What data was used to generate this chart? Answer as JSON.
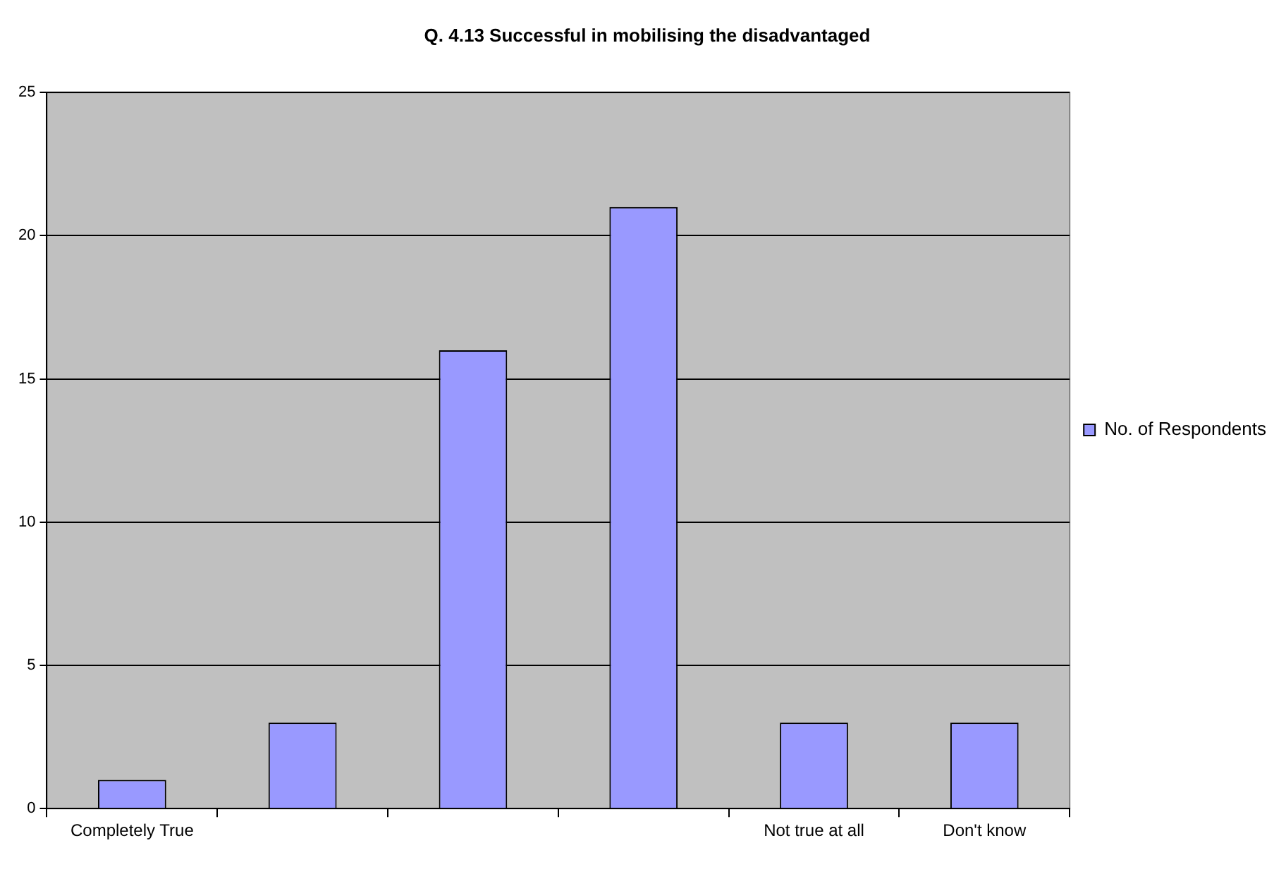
{
  "chart_data": {
    "type": "bar",
    "title": "Q. 4.13 Successful in mobilising the disadvantaged",
    "categories": [
      "Completely True",
      null,
      null,
      null,
      "Not true at all",
      "Don't know"
    ],
    "series": [
      {
        "name": "No. of Respondents",
        "color": "#9999ff",
        "values": [
          1,
          3,
          16,
          21,
          3,
          3
        ]
      }
    ],
    "ylim": [
      0,
      25
    ],
    "yticks": [
      0,
      5,
      10,
      15,
      20,
      25
    ],
    "grid": "y",
    "legend": "right"
  }
}
